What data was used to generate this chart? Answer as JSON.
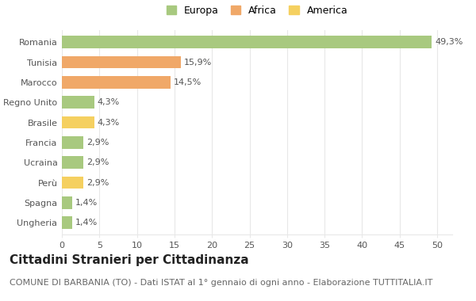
{
  "categories": [
    "Romania",
    "Tunisia",
    "Marocco",
    "Regno Unito",
    "Brasile",
    "Francia",
    "Ucraina",
    "Perù",
    "Spagna",
    "Ungheria"
  ],
  "values": [
    49.3,
    15.9,
    14.5,
    4.3,
    4.3,
    2.9,
    2.9,
    2.9,
    1.4,
    1.4
  ],
  "labels": [
    "49,3%",
    "15,9%",
    "14,5%",
    "4,3%",
    "4,3%",
    "2,9%",
    "2,9%",
    "2,9%",
    "1,4%",
    "1,4%"
  ],
  "colors": [
    "#a8c97f",
    "#f0a868",
    "#f0a868",
    "#a8c97f",
    "#f5d060",
    "#a8c97f",
    "#a8c97f",
    "#f5d060",
    "#a8c97f",
    "#a8c97f"
  ],
  "legend_labels": [
    "Europa",
    "Africa",
    "America"
  ],
  "legend_colors": [
    "#a8c97f",
    "#f0a868",
    "#f5d060"
  ],
  "title": "Cittadini Stranieri per Cittadinanza",
  "subtitle": "COMUNE DI BARBANIA (TO) - Dati ISTAT al 1° gennaio di ogni anno - Elaborazione TUTTITALIA.IT",
  "xlim": [
    0,
    52
  ],
  "xticks": [
    0,
    5,
    10,
    15,
    20,
    25,
    30,
    35,
    40,
    45,
    50
  ],
  "bg_color": "#ffffff",
  "grid_color": "#e8e8e8",
  "bar_height": 0.62,
  "title_fontsize": 11,
  "subtitle_fontsize": 8,
  "label_fontsize": 8,
  "tick_fontsize": 8,
  "legend_fontsize": 9
}
